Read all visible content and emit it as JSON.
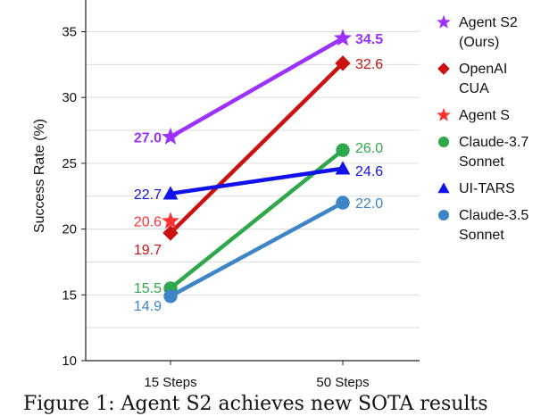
{
  "chart_data": {
    "type": "line",
    "categories": [
      "15 Steps",
      "50 Steps"
    ],
    "ylabel": "Success Rate (%)",
    "xlabel": "",
    "ylim": [
      10,
      37
    ],
    "yticks": [
      10,
      15,
      20,
      25,
      30,
      35
    ],
    "grid": true,
    "legend_position": "right",
    "series": [
      {
        "name": "Agent S2 (Ours)",
        "legend_lines": [
          "Agent S2",
          "(Ours)"
        ],
        "color": "#9b30ff",
        "marker": "star",
        "values": [
          27.0,
          34.5
        ],
        "labels": [
          "27.0",
          "34.5"
        ],
        "bold": true,
        "connected": true
      },
      {
        "name": "OpenAI CUA",
        "legend_lines": [
          "OpenAI",
          "CUA"
        ],
        "color": "#cc1111",
        "marker": "diamond",
        "values": [
          19.7,
          32.6
        ],
        "labels": [
          "19.7",
          "32.6"
        ],
        "bold": false,
        "connected": true
      },
      {
        "name": "Agent S",
        "legend_lines": [
          "Agent S"
        ],
        "color": "#ff3030",
        "marker": "star",
        "values": [
          20.6,
          null
        ],
        "labels": [
          "20.6",
          ""
        ],
        "bold": false,
        "connected": false
      },
      {
        "name": "Claude-3.7 Sonnet",
        "legend_lines": [
          "Claude-3.7",
          "Sonnet"
        ],
        "color": "#2ea84a",
        "marker": "circle",
        "values": [
          15.5,
          26.0
        ],
        "labels": [
          "15.5",
          "26.0"
        ],
        "bold": false,
        "connected": true
      },
      {
        "name": "UI-TARS",
        "legend_lines": [
          "UI-TARS"
        ],
        "color": "#1111ee",
        "marker": "triangle",
        "values": [
          22.7,
          24.6
        ],
        "labels": [
          "22.7",
          "24.6"
        ],
        "bold": false,
        "connected": true
      },
      {
        "name": "Claude-3.5 Sonnet",
        "legend_lines": [
          "Claude-3.5",
          "Sonnet"
        ],
        "color": "#3d85c6",
        "marker": "circle",
        "values": [
          14.9,
          22.0
        ],
        "labels": [
          "14.9",
          "22.0"
        ],
        "bold": false,
        "connected": true
      }
    ]
  },
  "caption": "Figure 1: Agent S2 achieves new SOTA results"
}
